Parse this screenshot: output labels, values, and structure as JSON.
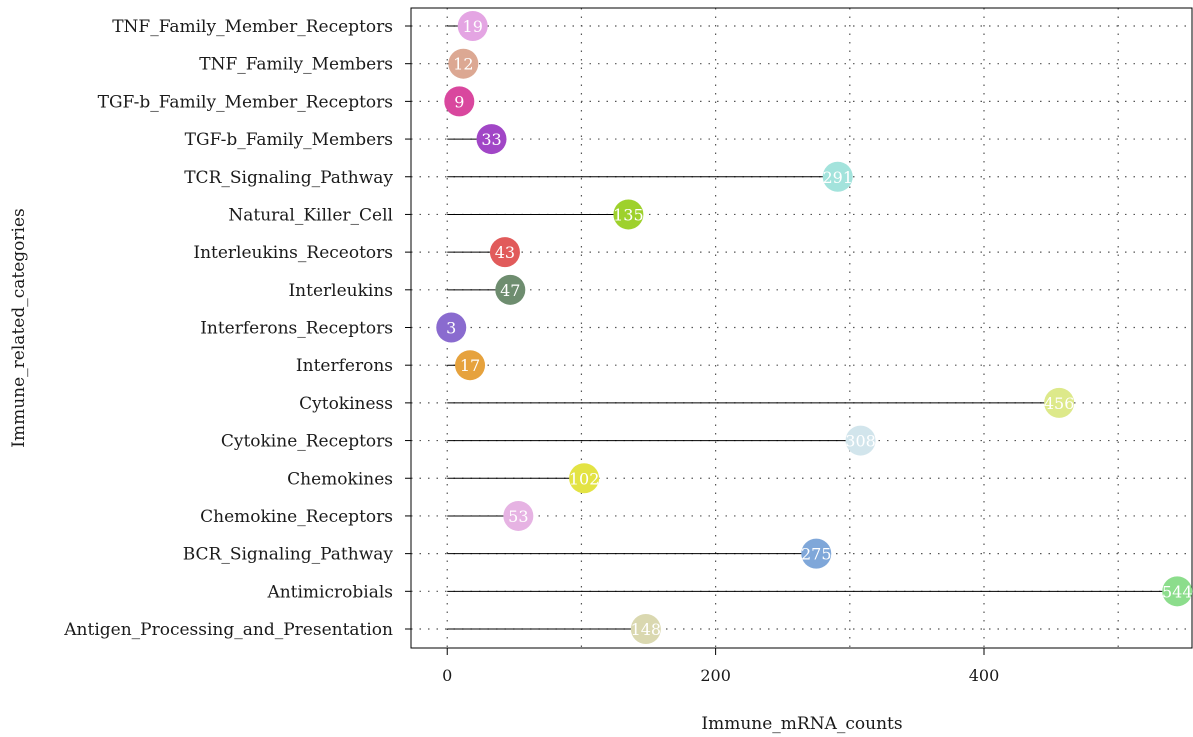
{
  "chart_data": {
    "type": "lollipop",
    "xlabel": "Immune_mRNA_counts",
    "ylabel": "Immune_related_categories",
    "xlim": [
      -27,
      555
    ],
    "x_ticks": [
      0,
      200,
      400
    ],
    "grid": "dotted",
    "categories": [
      {
        "name": "TNF_Family_Member_Receptors",
        "value": 19,
        "color": "#e4a5e3"
      },
      {
        "name": "TNF_Family_Members",
        "value": 12,
        "color": "#dca893"
      },
      {
        "name": "TGF-b_Family_Member_Receptors",
        "value": 9,
        "color": "#d9479e"
      },
      {
        "name": "TGF-b_Family_Members",
        "value": 33,
        "color": "#a146c6"
      },
      {
        "name": "TCR_Signaling_Pathway",
        "value": 291,
        "color": "#a3e3dc"
      },
      {
        "name": "Natural_Killer_Cell",
        "value": 135,
        "color": "#9ed12c"
      },
      {
        "name": "Interleukins_Receotors",
        "value": 43,
        "color": "#e15b5b"
      },
      {
        "name": "Interleukins",
        "value": 47,
        "color": "#6e8d6f"
      },
      {
        "name": "Interferons_Receptors",
        "value": 3,
        "color": "#8a6bcf"
      },
      {
        "name": "Interferons",
        "value": 17,
        "color": "#e6a23d"
      },
      {
        "name": "Cytokiness",
        "value": 456,
        "color": "#dde98a"
      },
      {
        "name": "Cytokine_Receptors",
        "value": 308,
        "color": "#d2e5ec"
      },
      {
        "name": "Chemokines",
        "value": 102,
        "color": "#e3e344"
      },
      {
        "name": "Chemokine_Receptors",
        "value": 53,
        "color": "#e6b3e3"
      },
      {
        "name": "BCR_Signaling_Pathway",
        "value": 275,
        "color": "#7fa7d9"
      },
      {
        "name": "Antimicrobials",
        "value": 544,
        "color": "#8cdd8c"
      },
      {
        "name": "Antigen_Processing_and_Presentation",
        "value": 148,
        "color": "#dad8b0"
      }
    ]
  }
}
